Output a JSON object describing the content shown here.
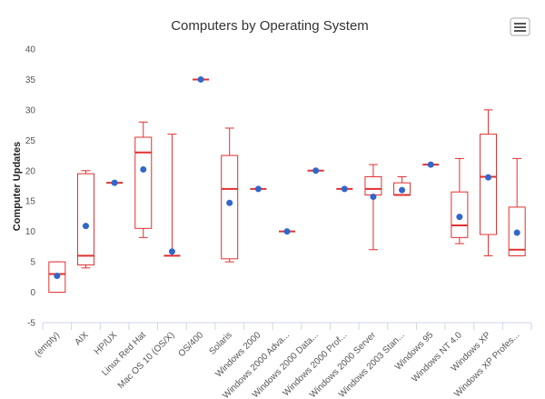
{
  "chart_data": {
    "type": "boxplot",
    "title": "Computers by Operating System",
    "ylabel": "Computer Updates",
    "xlabel": "",
    "ylim": [
      -5,
      40
    ],
    "yticks": [
      -5,
      0,
      5,
      10,
      15,
      20,
      25,
      30,
      35,
      40
    ],
    "grid": false,
    "legend": "none",
    "box_color": "#e03030",
    "mean_color": "#3366cc",
    "categories": [
      "(empty)",
      "AIX",
      "HP/UX",
      "Linux Red Hat",
      "Mac OS 10 (OS/X)",
      "OS/400",
      "Solaris",
      "Windows 2000",
      "Windows 2000 Adva...",
      "Windows 2000 Data...",
      "Windows 2000 Prof...",
      "Windows 2000 Server",
      "Windows 2003 Stan...",
      "Windows 95",
      "Windows NT 4.0",
      "Windows XP",
      "Windows XP Profes..."
    ],
    "boxes": [
      {
        "low": 0,
        "q1": 0,
        "median": 3,
        "q3": 5,
        "high": 5,
        "mean": 2.7
      },
      {
        "low": 4,
        "q1": 4.5,
        "median": 6,
        "q3": 19.5,
        "high": 20,
        "mean": 10.9
      },
      {
        "low": 18,
        "q1": 18,
        "median": 18,
        "q3": 18,
        "high": 18,
        "mean": 18
      },
      {
        "low": 9,
        "q1": 10.5,
        "median": 23,
        "q3": 25.5,
        "high": 28,
        "mean": 20.2
      },
      {
        "low": 6,
        "q1": 6,
        "median": 6,
        "q3": 6,
        "high": 26,
        "mean": 6.7
      },
      {
        "low": 35,
        "q1": 35,
        "median": 35,
        "q3": 35,
        "high": 35,
        "mean": 35
      },
      {
        "low": 5,
        "q1": 5.5,
        "median": 17,
        "q3": 22.5,
        "high": 27,
        "mean": 14.7
      },
      {
        "low": 17,
        "q1": 17,
        "median": 17,
        "q3": 17,
        "high": 17,
        "mean": 17
      },
      {
        "low": 10,
        "q1": 10,
        "median": 10,
        "q3": 10,
        "high": 10,
        "mean": 10
      },
      {
        "low": 20,
        "q1": 20,
        "median": 20,
        "q3": 20,
        "high": 20,
        "mean": 20
      },
      {
        "low": 17,
        "q1": 17,
        "median": 17,
        "q3": 17,
        "high": 17,
        "mean": 17
      },
      {
        "low": 7,
        "q1": 16,
        "median": 17,
        "q3": 19,
        "high": 21,
        "mean": 15.7
      },
      {
        "low": 16,
        "q1": 16,
        "median": 16,
        "q3": 18,
        "high": 19,
        "mean": 16.8
      },
      {
        "low": 21,
        "q1": 21,
        "median": 21,
        "q3": 21,
        "high": 21,
        "mean": 21
      },
      {
        "low": 8,
        "q1": 9,
        "median": 11,
        "q3": 16.5,
        "high": 22,
        "mean": 12.4
      },
      {
        "low": 6,
        "q1": 9.5,
        "median": 19,
        "q3": 26,
        "high": 30,
        "mean": 18.9
      },
      {
        "low": 6,
        "q1": 6,
        "median": 7,
        "q3": 14,
        "high": 22,
        "mean": 9.8
      }
    ]
  },
  "menu": {
    "icon": "hamburger-menu-icon"
  }
}
